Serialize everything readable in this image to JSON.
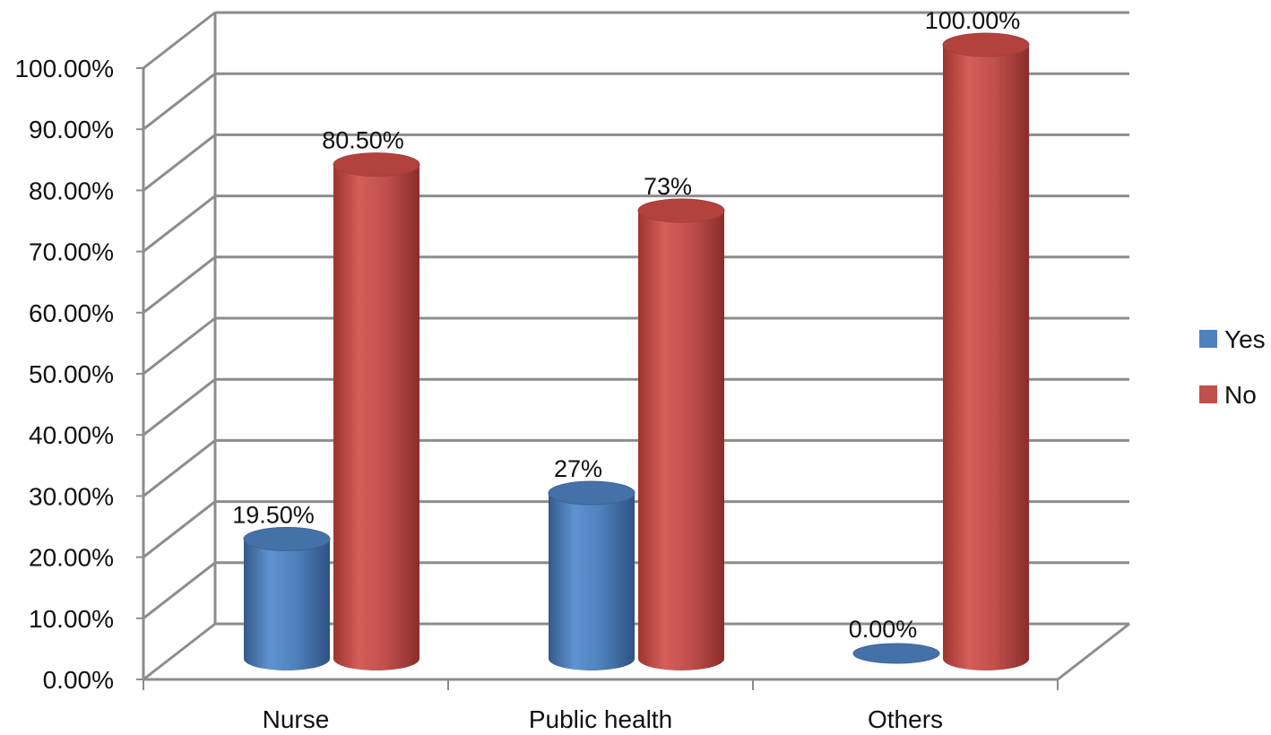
{
  "chart_data": {
    "type": "bar",
    "style": "3d-cylinder",
    "categories": [
      "Nurse",
      "Public health",
      "Others"
    ],
    "series": [
      {
        "name": "Yes",
        "color": "#4F81BD",
        "values": [
          19.5,
          27,
          0
        ],
        "labels": [
          "19.50%",
          "27%",
          "0.00%"
        ]
      },
      {
        "name": "No",
        "color": "#C0504D",
        "values": [
          80.5,
          73,
          100
        ],
        "labels": [
          "80.50%",
          "73%",
          "100.00%"
        ]
      }
    ],
    "ylim": [
      0,
      100
    ],
    "yticks": [
      0,
      10,
      20,
      30,
      40,
      50,
      60,
      70,
      80,
      90,
      100
    ],
    "ytick_labels": [
      "0.00%",
      "10.00%",
      "20.00%",
      "30.00%",
      "40.00%",
      "50.00%",
      "60.00%",
      "70.00%",
      "80.00%",
      "90.00%",
      "100.00%"
    ],
    "grid": true,
    "legend_position": "right",
    "title": "",
    "xlabel": "",
    "ylabel": ""
  }
}
